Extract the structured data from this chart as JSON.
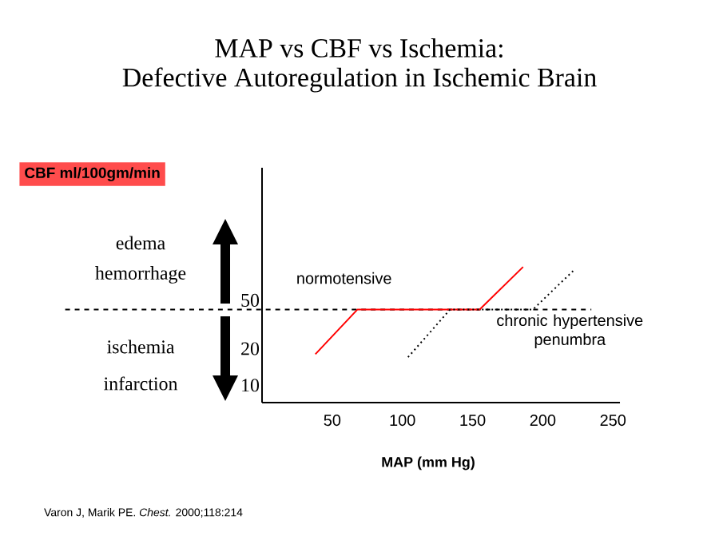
{
  "chart_data": {
    "type": "line",
    "title": "MAP vs CBF vs Ischemia:",
    "subtitle": "Defective Autoregulation in Ischemic Brain",
    "xlabel": "MAP (mm Hg)",
    "annotations": [
      "edema",
      "hemorrhage",
      "ischemia",
      "infarction",
      "Varon J, Marik PE. *Chest.* 2000;118:214",
      "CBF ml/100gm/min"
    ],
    "series": [
      {
        "name": "normotensive",
        "color": "#ff0000",
        "line_style": "solid",
        "x": [
          38,
          68,
          155,
          186
        ],
        "values": [
          18,
          42,
          42,
          94
        ]
      },
      {
        "name": "chronic hypertensive penumbra",
        "color": "#000000",
        "line_style": "dotted",
        "x": [
          104,
          134,
          193,
          222
        ],
        "values": [
          17,
          42,
          42,
          88
        ]
      }
    ],
    "xlim": [
      0,
      255
    ],
    "xticks": [
      50,
      100,
      150,
      200,
      250
    ],
    "ylim": [
      7.2,
      615
    ],
    "yticks": [
      10,
      20,
      50
    ],
    "log": "y",
    "ref_lines": [
      {
        "axis": "y",
        "value": 42,
        "line_style": "dashed",
        "color": "#000000"
      }
    ],
    "grid": false,
    "legend": false,
    "marker": "none"
  }
}
